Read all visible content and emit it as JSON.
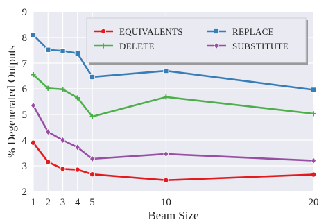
{
  "chart_data": {
    "type": "line",
    "xlabel": "Beam Size",
    "ylabel": "% Degenerated Outputs",
    "x": [
      1,
      2,
      3,
      4,
      5,
      10,
      20
    ],
    "xticks": [
      1,
      2,
      3,
      4,
      5,
      10,
      20
    ],
    "yticks": [
      2,
      3,
      4,
      5,
      6,
      7,
      8,
      9
    ],
    "xlim": [
      1,
      20
    ],
    "ylim": [
      2,
      9
    ],
    "grid": true,
    "legend_position": "top-right",
    "background": "#eaeaf2",
    "series": [
      {
        "name": "EQUIVALENTS",
        "color": "#e41a1c",
        "marker": "circle",
        "values": [
          3.9,
          3.15,
          2.88,
          2.85,
          2.67,
          2.44,
          2.66
        ]
      },
      {
        "name": "REPLACE",
        "color": "#377eb8",
        "marker": "square",
        "values": [
          8.1,
          7.52,
          7.48,
          7.38,
          6.46,
          6.7,
          5.96
        ]
      },
      {
        "name": "DELETE",
        "color": "#4daf4a",
        "marker": "plus",
        "values": [
          6.55,
          6.02,
          5.98,
          5.65,
          4.92,
          5.68,
          5.03
        ]
      },
      {
        "name": "SUBSTITUTE",
        "color": "#984ea3",
        "marker": "diamond",
        "values": [
          5.35,
          4.32,
          4.0,
          3.72,
          3.27,
          3.46,
          3.2
        ]
      }
    ]
  }
}
